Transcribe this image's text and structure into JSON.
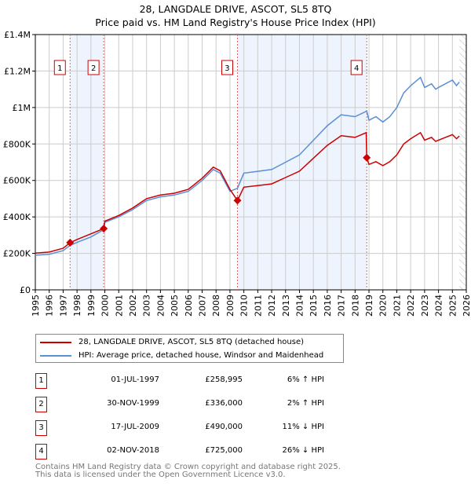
{
  "chart_data": {
    "type": "line",
    "title": "28, LANGDALE DRIVE, ASCOT, SL5 8TQ",
    "subtitle": "Price paid vs. HM Land Registry's House Price Index (HPI)",
    "xlim": [
      1995,
      2026
    ],
    "ylim": [
      0,
      1400000
    ],
    "x_ticks": [
      "1995",
      "1996",
      "1997",
      "1998",
      "1999",
      "2000",
      "2001",
      "2002",
      "2003",
      "2004",
      "2005",
      "2006",
      "2007",
      "2008",
      "2009",
      "2010",
      "2011",
      "2012",
      "2013",
      "2014",
      "2015",
      "2016",
      "2017",
      "2018",
      "2019",
      "2020",
      "2021",
      "2022",
      "2023",
      "2024",
      "2025",
      "2026"
    ],
    "y_ticks": [
      {
        "v": 0,
        "label": "£0"
      },
      {
        "v": 200000,
        "label": "£200K"
      },
      {
        "v": 400000,
        "label": "£400K"
      },
      {
        "v": 600000,
        "label": "£600K"
      },
      {
        "v": 800000,
        "label": "£800K"
      },
      {
        "v": 1000000,
        "label": "£1M"
      },
      {
        "v": 1200000,
        "label": "£1.2M"
      },
      {
        "v": 1400000,
        "label": "£1.4M"
      }
    ],
    "grid": true,
    "shaded_periods": [
      [
        1997.5,
        1999.92
      ],
      [
        2009.54,
        2018.84
      ]
    ],
    "hatched_from": 2025.5,
    "series": [
      {
        "name": "28, LANGDALE DRIVE, ASCOT, SL5 8TQ (detached house)",
        "color": "#cc0000",
        "x": [
          1995,
          1996,
          1997,
          1997.5,
          1998,
          1999,
          1999.92,
          2000,
          2001,
          2002,
          2003,
          2004,
          2005,
          2006,
          2007,
          2007.8,
          2008.3,
          2009,
          2009.54,
          2010,
          2011,
          2012,
          2013,
          2014,
          2015,
          2016,
          2017,
          2018,
          2018.8,
          2018.84,
          2019,
          2019.5,
          2020,
          2020.5,
          2021,
          2021.5,
          2022,
          2022.7,
          2023,
          2023.5,
          2023.8,
          2024,
          2025,
          2025.3,
          2025.5
        ],
        "y": [
          201000,
          207000,
          228000,
          259000,
          276000,
          307000,
          336000,
          377000,
          408000,
          449000,
          500000,
          520000,
          530000,
          551000,
          612000,
          673000,
          653000,
          551000,
          490000,
          563000,
          572000,
          581000,
          616000,
          651000,
          722000,
          792000,
          845000,
          836000,
          862000,
          725000,
          688000,
          703000,
          681000,
          703000,
          740000,
          800000,
          829000,
          862000,
          821000,
          836000,
          814000,
          821000,
          851000,
          829000,
          844000
        ]
      },
      {
        "name": "HPI: Average price, detached house, Windsor and Maidenhead",
        "color": "#5b8fd4",
        "x": [
          1995,
          1996,
          1997,
          1997.5,
          1998,
          1999,
          1999.92,
          2000,
          2001,
          2002,
          2003,
          2004,
          2005,
          2006,
          2007,
          2007.8,
          2008.3,
          2009,
          2009.54,
          2010,
          2011,
          2012,
          2013,
          2014,
          2015,
          2016,
          2017,
          2018,
          2018.84,
          2019,
          2019.5,
          2020,
          2020.5,
          2021,
          2021.5,
          2022,
          2022.7,
          2023,
          2023.5,
          2023.8,
          2024,
          2025,
          2025.3,
          2025.5
        ],
        "y": [
          190000,
          195000,
          215000,
          244000,
          260000,
          290000,
          330000,
          370000,
          400000,
          440000,
          490000,
          510000,
          520000,
          540000,
          600000,
          660000,
          640000,
          540000,
          557000,
          640000,
          650000,
          660000,
          700000,
          740000,
          820000,
          900000,
          960000,
          950000,
          980000,
          930000,
          950000,
          920000,
          950000,
          1000000,
          1080000,
          1120000,
          1165000,
          1110000,
          1130000,
          1100000,
          1110000,
          1150000,
          1120000,
          1140000
        ]
      }
    ],
    "sales": [
      {
        "n": "1",
        "x": 1997.5,
        "y": 258995
      },
      {
        "n": "2",
        "x": 1999.92,
        "y": 336000
      },
      {
        "n": "3",
        "x": 2009.54,
        "y": 490000
      },
      {
        "n": "4",
        "x": 2018.84,
        "y": 725000
      }
    ]
  },
  "legend": {
    "property": "28, LANGDALE DRIVE, ASCOT, SL5 8TQ (detached house)",
    "hpi": "HPI: Average price, detached house, Windsor and Maidenhead"
  },
  "transactions": [
    {
      "n": "1",
      "date": "01-JUL-1997",
      "price": "£258,995",
      "hpi": "6% ↑ HPI"
    },
    {
      "n": "2",
      "date": "30-NOV-1999",
      "price": "£336,000",
      "hpi": "2% ↑ HPI"
    },
    {
      "n": "3",
      "date": "17-JUL-2009",
      "price": "£490,000",
      "hpi": "11% ↓ HPI"
    },
    {
      "n": "4",
      "date": "02-NOV-2018",
      "price": "£725,000",
      "hpi": "26% ↓ HPI"
    }
  ],
  "footer": {
    "line1": "Contains HM Land Registry data © Crown copyright and database right 2025.",
    "line2": "This data is licensed under the Open Government Licence v3.0."
  }
}
